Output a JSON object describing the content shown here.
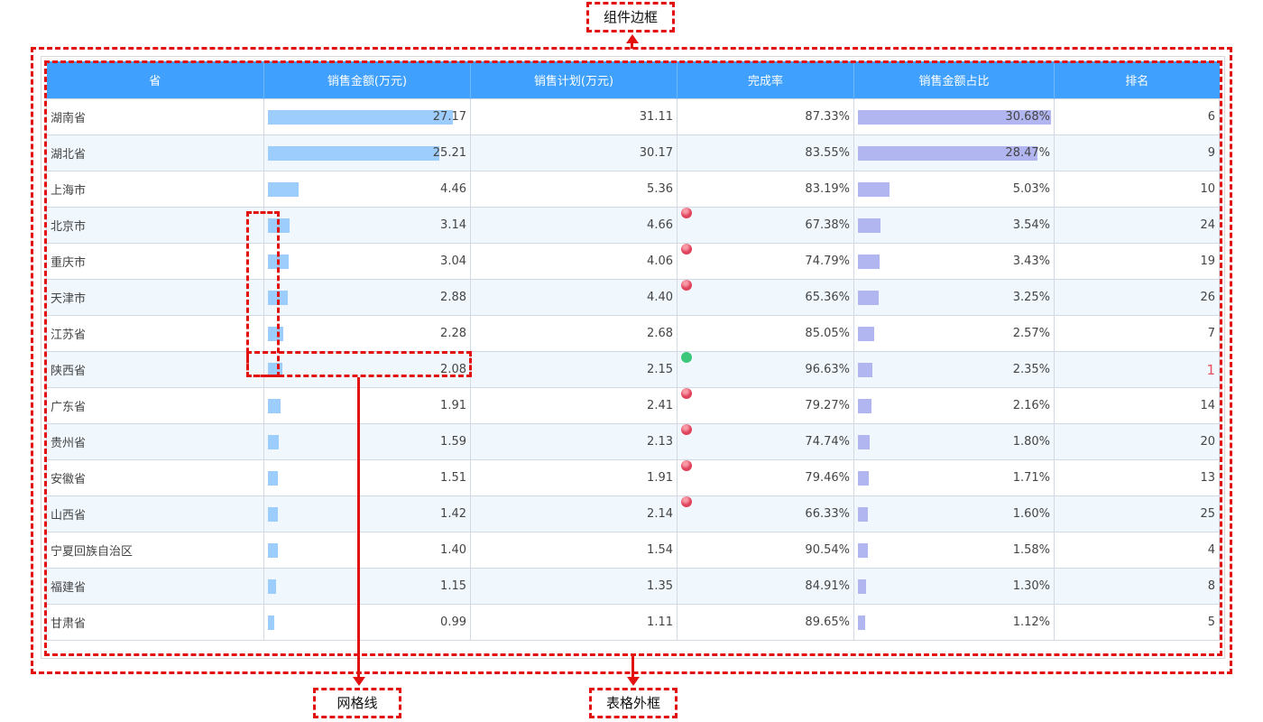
{
  "columns": [
    "省",
    "销售金额(万元)",
    "销售计划(万元)",
    "完成率",
    "销售金额占比",
    "排名"
  ],
  "rows": [
    {
      "province": "湖南省",
      "sales": "27.17",
      "plan": "31.11",
      "rate": "87.33%",
      "share": "30.68%",
      "rank": "6",
      "dot": null
    },
    {
      "province": "湖北省",
      "sales": "25.21",
      "plan": "30.17",
      "rate": "83.55%",
      "share": "28.47%",
      "rank": "9",
      "dot": null
    },
    {
      "province": "上海市",
      "sales": "4.46",
      "plan": "5.36",
      "rate": "83.19%",
      "share": "5.03%",
      "rank": "10",
      "dot": null
    },
    {
      "province": "北京市",
      "sales": "3.14",
      "plan": "4.66",
      "rate": "67.38%",
      "share": "3.54%",
      "rank": "24",
      "dot": "red"
    },
    {
      "province": "重庆市",
      "sales": "3.04",
      "plan": "4.06",
      "rate": "74.79%",
      "share": "3.43%",
      "rank": "19",
      "dot": "red"
    },
    {
      "province": "天津市",
      "sales": "2.88",
      "plan": "4.40",
      "rate": "65.36%",
      "share": "3.25%",
      "rank": "26",
      "dot": "red"
    },
    {
      "province": "江苏省",
      "sales": "2.28",
      "plan": "2.68",
      "rate": "85.05%",
      "share": "2.57%",
      "rank": "7",
      "dot": null
    },
    {
      "province": "陕西省",
      "sales": "2.08",
      "plan": "2.15",
      "rate": "96.63%",
      "share": "2.35%",
      "rank": "1",
      "dot": "green"
    },
    {
      "province": "广东省",
      "sales": "1.91",
      "plan": "2.41",
      "rate": "79.27%",
      "share": "2.16%",
      "rank": "14",
      "dot": "red"
    },
    {
      "province": "贵州省",
      "sales": "1.59",
      "plan": "2.13",
      "rate": "74.74%",
      "share": "1.80%",
      "rank": "20",
      "dot": "red"
    },
    {
      "province": "安徽省",
      "sales": "1.51",
      "plan": "1.91",
      "rate": "79.46%",
      "share": "1.71%",
      "rank": "13",
      "dot": "red"
    },
    {
      "province": "山西省",
      "sales": "1.42",
      "plan": "2.14",
      "rate": "66.33%",
      "share": "1.60%",
      "rank": "25",
      "dot": "red"
    },
    {
      "province": "宁夏回族自治区",
      "sales": "1.40",
      "plan": "1.54",
      "rate": "90.54%",
      "share": "1.58%",
      "rank": "4",
      "dot": null
    },
    {
      "province": "福建省",
      "sales": "1.15",
      "plan": "1.35",
      "rate": "84.91%",
      "share": "1.30%",
      "rank": "8",
      "dot": null
    },
    {
      "province": "甘肃省",
      "sales": "0.99",
      "plan": "1.11",
      "rate": "89.65%",
      "share": "1.12%",
      "rank": "5",
      "dot": null
    }
  ],
  "annotations": {
    "component_border": "组件边框",
    "grid_line": "网格线",
    "table_border": "表格外框"
  },
  "colors": {
    "header_bg": "#3fa0fe",
    "sales_bar": "#9ccdfc",
    "share_bar": "#b2b6f0",
    "annotation": "#e31010",
    "rank_highlight": "#e8505b"
  }
}
